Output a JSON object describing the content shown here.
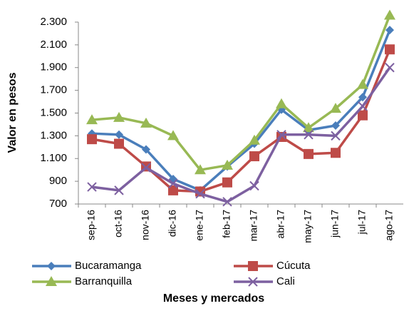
{
  "chart_data": {
    "type": "line",
    "y_label": "Valor en pesos",
    "x_label": "Meses y mercados",
    "categories": [
      "sep-16",
      "oct-16",
      "nov-16",
      "dic-16",
      "ene-17",
      "feb-17",
      "mar-17",
      "abr-17",
      "may-17",
      "jun-17",
      "jul-17",
      "ago-17"
    ],
    "ylim": [
      700,
      2300
    ],
    "yticks": [
      {
        "value": 700,
        "label": "700"
      },
      {
        "value": 900,
        "label": "900"
      },
      {
        "value": 1100,
        "label": "1.100"
      },
      {
        "value": 1300,
        "label": "1.300"
      },
      {
        "value": 1500,
        "label": "1.500"
      },
      {
        "value": 1700,
        "label": "1.700"
      },
      {
        "value": 1900,
        "label": "1.900"
      },
      {
        "value": 2100,
        "label": "2.100"
      },
      {
        "value": 2300,
        "label": "2.300"
      }
    ],
    "series": [
      {
        "name": "Bucaramanga",
        "color": "#4a7ebb",
        "marker": "diamond",
        "values": [
          1320,
          1310,
          1180,
          920,
          820,
          1030,
          1230,
          1530,
          1350,
          1390,
          1640,
          2230
        ]
      },
      {
        "name": "Cúcuta",
        "color": "#be4b48",
        "marker": "square",
        "values": [
          1270,
          1230,
          1030,
          820,
          810,
          890,
          1120,
          1290,
          1140,
          1150,
          1480,
          2060
        ]
      },
      {
        "name": "Barranquilla",
        "color": "#98b954",
        "marker": "triangle",
        "values": [
          1440,
          1460,
          1410,
          1300,
          1000,
          1040,
          1260,
          1580,
          1370,
          1540,
          1750,
          2360
        ]
      },
      {
        "name": "Cali",
        "color": "#7d60a0",
        "marker": "x",
        "values": [
          850,
          820,
          1020,
          880,
          790,
          720,
          860,
          1310,
          1310,
          1300,
          1560,
          1900
        ]
      }
    ]
  }
}
